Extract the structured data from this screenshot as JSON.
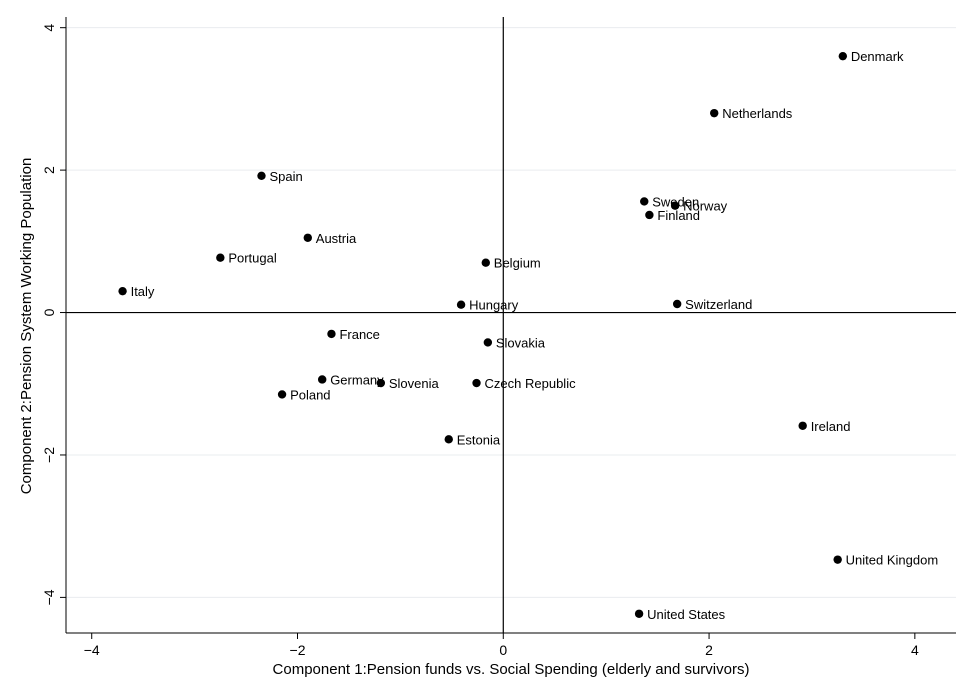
{
  "chart_data": {
    "type": "scatter",
    "title": "",
    "xlabel": "Component 1:Pension funds vs. Social Spending (elderly and survivors)",
    "ylabel": "Component 2:Pension System Working Population",
    "xlim": [
      -4.25,
      4.4
    ],
    "ylim": [
      -4.5,
      4.15
    ],
    "xticks": [
      -4,
      -2,
      0,
      2,
      4
    ],
    "yticks": [
      -4,
      -2,
      0,
      2,
      4
    ],
    "xtick_labels": [
      "−4",
      "−2",
      "0",
      "2",
      "4"
    ],
    "ytick_labels": [
      "−4",
      "−2",
      "0",
      "2",
      "4"
    ],
    "grid": true,
    "reference_lines": {
      "x": 0,
      "y": 0
    },
    "marker_color": "#000000",
    "points": [
      {
        "label": "Denmark",
        "x": 3.3,
        "y": 3.6
      },
      {
        "label": "Netherlands",
        "x": 2.05,
        "y": 2.8
      },
      {
        "label": "Sweden",
        "x": 1.37,
        "y": 1.56
      },
      {
        "label": "Norway",
        "x": 1.67,
        "y": 1.5
      },
      {
        "label": "Finland",
        "x": 1.42,
        "y": 1.37
      },
      {
        "label": "Spain",
        "x": -2.35,
        "y": 1.92
      },
      {
        "label": "Austria",
        "x": -1.9,
        "y": 1.05
      },
      {
        "label": "Portugal",
        "x": -2.75,
        "y": 0.77
      },
      {
        "label": "Belgium",
        "x": -0.17,
        "y": 0.7
      },
      {
        "label": "Italy",
        "x": -3.7,
        "y": 0.3
      },
      {
        "label": "Hungary",
        "x": -0.41,
        "y": 0.11
      },
      {
        "label": "Switzerland",
        "x": 1.69,
        "y": 0.12
      },
      {
        "label": "France",
        "x": -1.67,
        "y": -0.3
      },
      {
        "label": "Slovakia",
        "x": -0.15,
        "y": -0.42
      },
      {
        "label": "Germany",
        "x": -1.76,
        "y": -0.94
      },
      {
        "label": "Slovenia",
        "x": -1.19,
        "y": -0.99
      },
      {
        "label": "Czech Republic",
        "x": -0.26,
        "y": -0.99
      },
      {
        "label": "Poland",
        "x": -2.15,
        "y": -1.15
      },
      {
        "label": "Estonia",
        "x": -0.53,
        "y": -1.78
      },
      {
        "label": "Ireland",
        "x": 2.91,
        "y": -1.59
      },
      {
        "label": "United Kingdom",
        "x": 3.25,
        "y": -3.47
      },
      {
        "label": "United States",
        "x": 1.32,
        "y": -4.23
      }
    ]
  }
}
